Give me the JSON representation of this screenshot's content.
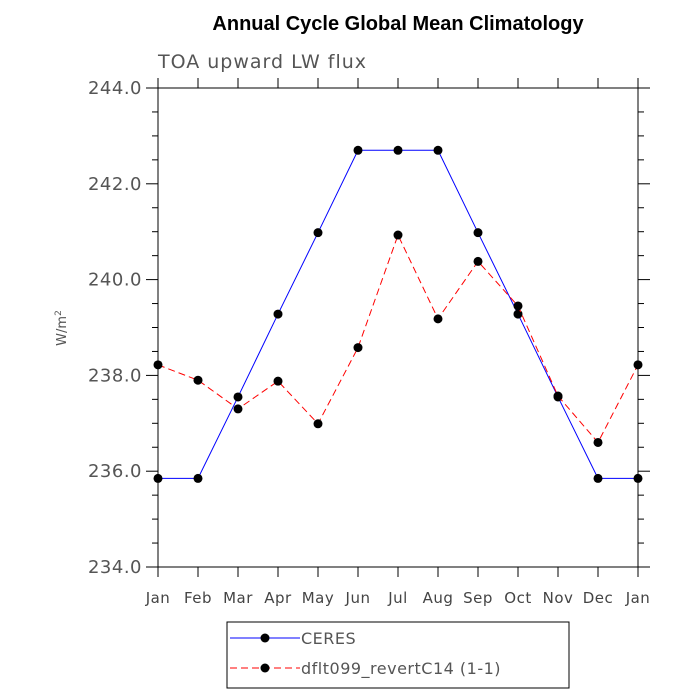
{
  "chart_data": {
    "type": "line",
    "title": "Annual Cycle Global Mean Climatology",
    "subtitle": "TOA upward LW flux",
    "ylabel": "W/m",
    "ylabel_sup": "2",
    "xlabel": "",
    "ylim": [
      234.0,
      244.0
    ],
    "yticks": [
      "234.0",
      "236.0",
      "238.0",
      "240.0",
      "242.0",
      "244.0"
    ],
    "categories": [
      "Jan",
      "Feb",
      "Mar",
      "Apr",
      "May",
      "Jun",
      "Jul",
      "Aug",
      "Sep",
      "Oct",
      "Nov",
      "Dec",
      "Jan"
    ],
    "grid": false,
    "legend_position": "bottom",
    "series": [
      {
        "name": "CERES",
        "color": "#0000ff",
        "line_style": "solid",
        "values": [
          235.85,
          235.85,
          237.55,
          239.28,
          240.98,
          242.7,
          242.7,
          242.7,
          240.98,
          239.28,
          237.55,
          235.85,
          235.85
        ]
      },
      {
        "name": "dflt099_revertC14 (1-1)",
        "color": "#ff0000",
        "line_style": "dashed",
        "values": [
          238.22,
          237.9,
          237.3,
          237.88,
          236.99,
          238.58,
          240.93,
          239.18,
          240.38,
          239.45,
          237.57,
          236.6,
          238.22
        ]
      }
    ]
  }
}
